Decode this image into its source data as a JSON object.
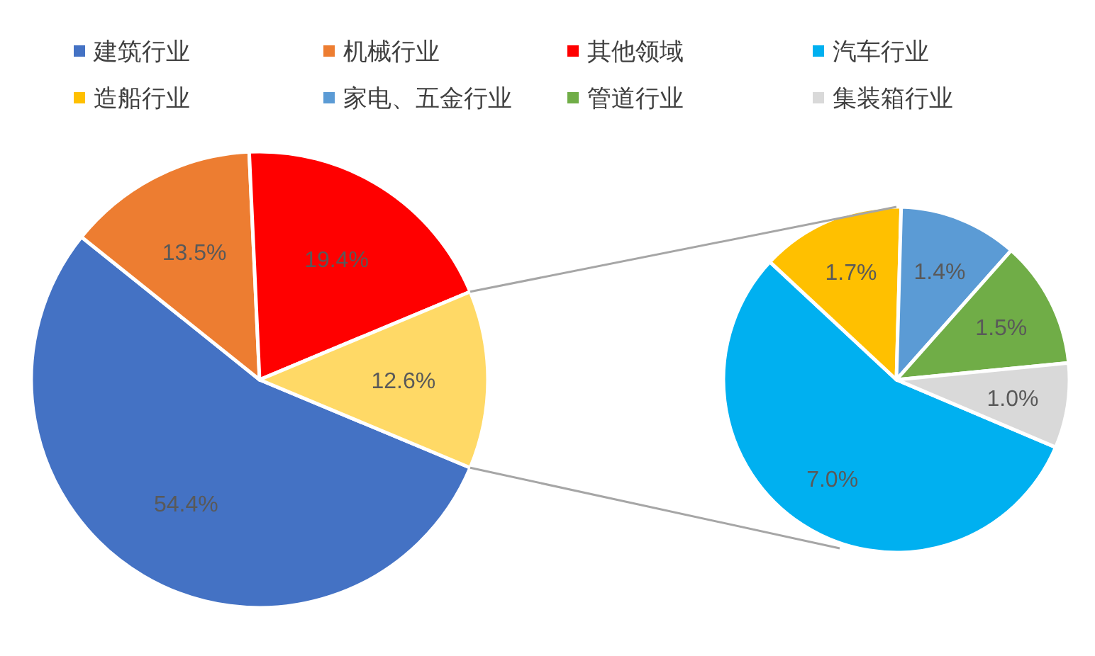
{
  "chart_data": [
    {
      "type": "pie",
      "categories": [
        "建筑行业",
        "机械行业",
        "其他领域",
        null
      ],
      "values": [
        54.4,
        13.5,
        19.4,
        12.6
      ],
      "colors": [
        "#4472c4",
        "#ed7d31",
        "#ff0000",
        "#ffd966"
      ],
      "value_labels": [
        "54.4%",
        "13.5%",
        "19.4%",
        "12.6%"
      ],
      "legend": "top"
    },
    {
      "type": "pie",
      "categories": [
        "汽车行业",
        "造船行业",
        "家电、五金行业",
        "管道行业",
        "集装箱行业"
      ],
      "values": [
        7.0,
        1.7,
        1.4,
        1.5,
        1.0
      ],
      "colors": [
        "#00b0f0",
        "#ffc000",
        "#5b9bd5",
        "#70ad47",
        "#d9d9d9"
      ],
      "value_labels": [
        "7.0%",
        "1.7%",
        "1.4%",
        "1.5%",
        "1.0%"
      ],
      "legend": "top"
    }
  ]
}
